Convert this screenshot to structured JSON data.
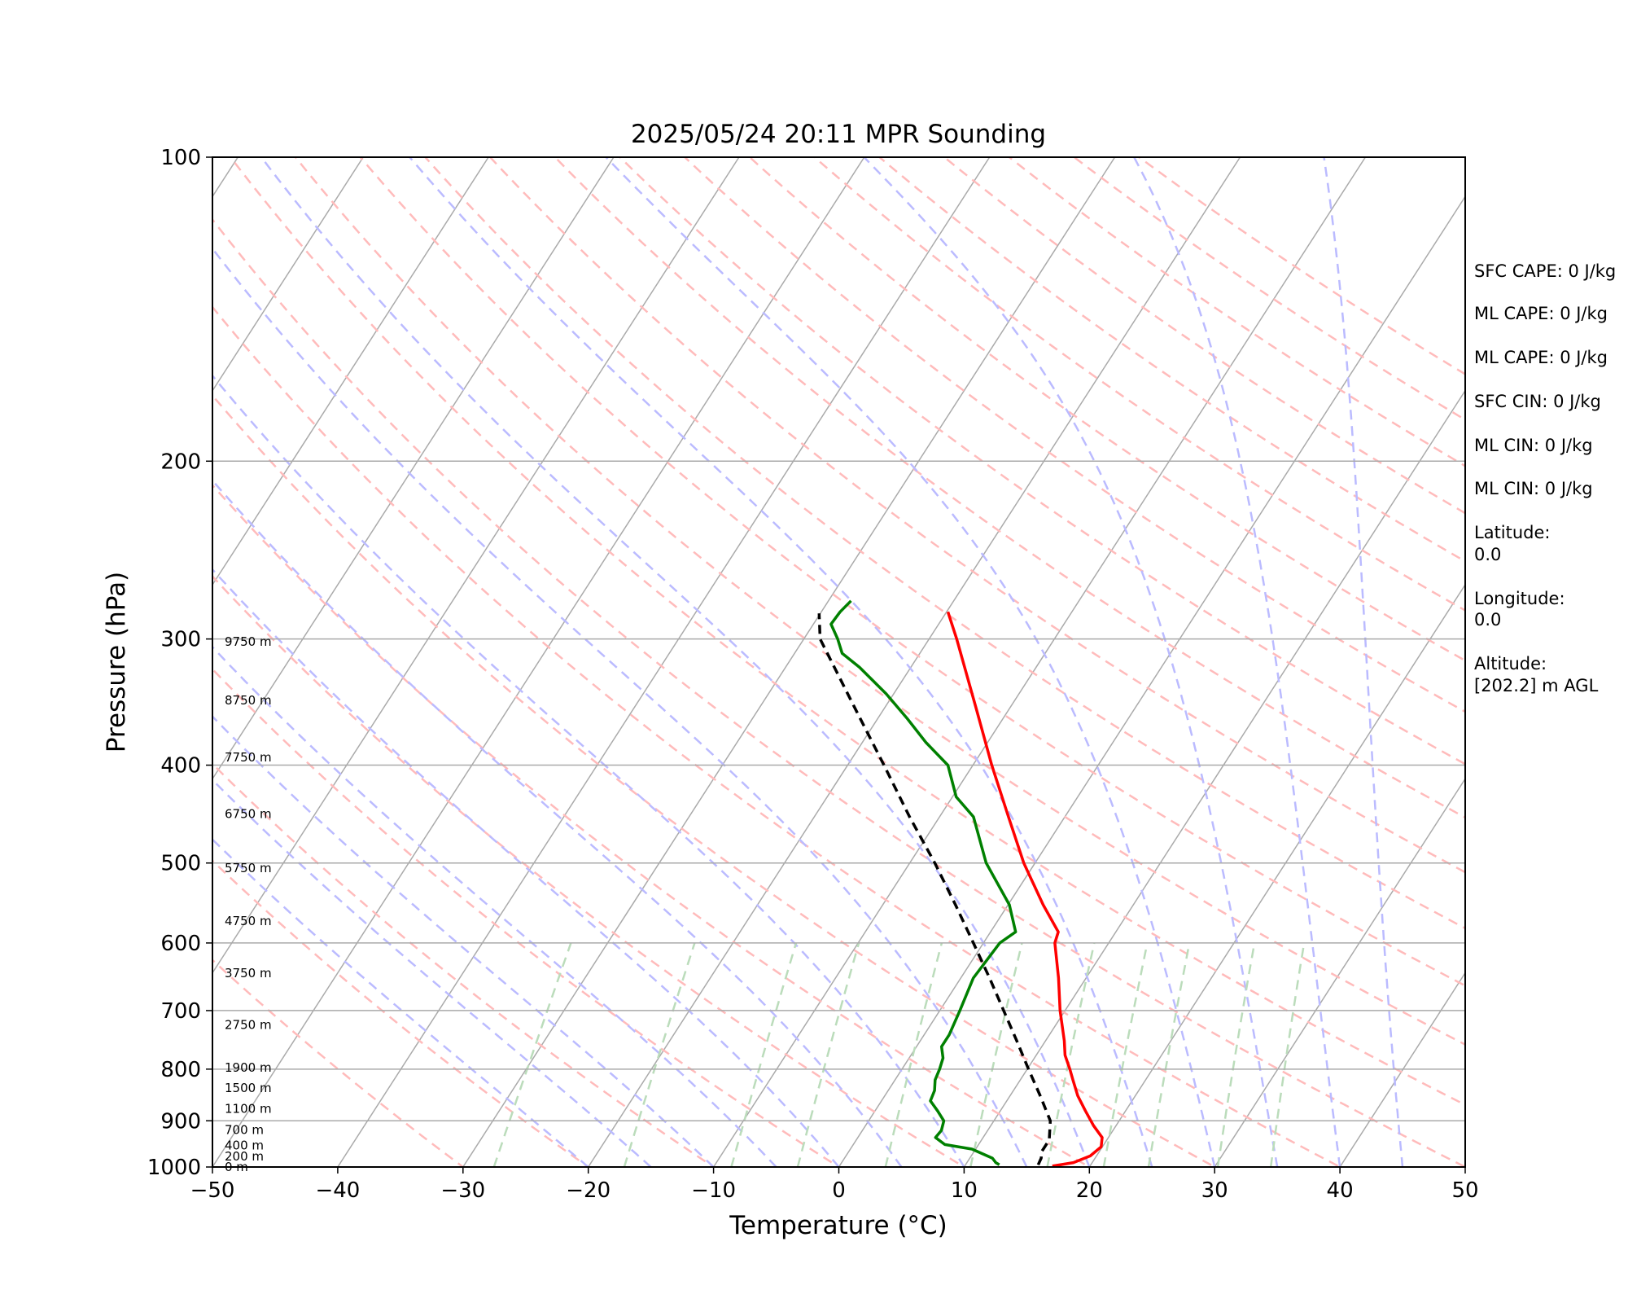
{
  "chart_data": {
    "type": "line",
    "title": "2025/05/24 20:11 MPR Sounding",
    "xlabel": "Temperature (°C)",
    "ylabel": "Pressure (hPa)",
    "xlim": [
      -50,
      50
    ],
    "ylim": [
      1000,
      100
    ],
    "y_scale": "log",
    "skew_t": true,
    "x_ticks": [
      "−50",
      "−40",
      "−30",
      "−20",
      "−10",
      "0",
      "10",
      "20",
      "30",
      "40",
      "50"
    ],
    "y_ticks": [
      "1000",
      "900",
      "800",
      "700",
      "600",
      "500",
      "400",
      "300",
      "200",
      "100"
    ],
    "height_labels": [
      {
        "label": "0 m",
        "p": 1000
      },
      {
        "label": "200 m",
        "p": 976
      },
      {
        "label": "400 m",
        "p": 952
      },
      {
        "label": "700 m",
        "p": 919
      },
      {
        "label": "1100 m",
        "p": 876
      },
      {
        "label": "1500 m",
        "p": 835
      },
      {
        "label": "1900 m",
        "p": 797
      },
      {
        "label": "2750 m",
        "p": 723
      },
      {
        "label": "3750 m",
        "p": 643
      },
      {
        "label": "4750 m",
        "p": 571
      },
      {
        "label": "5750 m",
        "p": 506
      },
      {
        "label": "6750 m",
        "p": 447
      },
      {
        "label": "7750 m",
        "p": 393
      },
      {
        "label": "8750 m",
        "p": 345
      },
      {
        "label": "9750 m",
        "p": 302
      }
    ],
    "series": [
      {
        "role": "temperature",
        "color": "#ff0000",
        "dashed": false,
        "points": [
          [
            998,
            17.0
          ],
          [
            990,
            18.5
          ],
          [
            975,
            19.5
          ],
          [
            955,
            19.9
          ],
          [
            935,
            19.5
          ],
          [
            910,
            18.2
          ],
          [
            880,
            16.8
          ],
          [
            850,
            15.4
          ],
          [
            820,
            14.2
          ],
          [
            800,
            13.4
          ],
          [
            775,
            12.3
          ],
          [
            750,
            11.5
          ],
          [
            700,
            9.6
          ],
          [
            650,
            7.8
          ],
          [
            600,
            5.7
          ],
          [
            585,
            5.4
          ],
          [
            550,
            2.8
          ],
          [
            500,
            -0.9
          ],
          [
            450,
            -4.5
          ],
          [
            400,
            -8.5
          ],
          [
            350,
            -12.8
          ],
          [
            300,
            -17.8
          ],
          [
            282,
            -19.9
          ]
        ]
      },
      {
        "role": "dewpoint",
        "color": "#008000",
        "dashed": false,
        "points": [
          [
            995,
            12.7
          ],
          [
            990,
            12.3
          ],
          [
            980,
            11.8
          ],
          [
            960,
            9.7
          ],
          [
            950,
            7.3
          ],
          [
            935,
            6.2
          ],
          [
            920,
            6.3
          ],
          [
            900,
            6.0
          ],
          [
            880,
            5.0
          ],
          [
            860,
            3.9
          ],
          [
            840,
            3.7
          ],
          [
            820,
            3.2
          ],
          [
            800,
            3.0
          ],
          [
            780,
            2.7
          ],
          [
            760,
            2.0
          ],
          [
            740,
            2.0
          ],
          [
            700,
            1.6
          ],
          [
            650,
            1.0
          ],
          [
            600,
            1.3
          ],
          [
            585,
            2.0
          ],
          [
            550,
            0.1
          ],
          [
            500,
            -3.9
          ],
          [
            450,
            -7.3
          ],
          [
            430,
            -9.7
          ],
          [
            400,
            -12.0
          ],
          [
            380,
            -14.9
          ],
          [
            360,
            -17.6
          ],
          [
            340,
            -20.6
          ],
          [
            320,
            -24.1
          ],
          [
            310,
            -26.2
          ],
          [
            300,
            -27.3
          ],
          [
            290,
            -28.6
          ],
          [
            282,
            -28.5
          ],
          [
            275,
            -28.2
          ]
        ]
      },
      {
        "role": "parcel",
        "color": "#000000",
        "dashed": true,
        "points": [
          [
            995,
            15.8
          ],
          [
            980,
            15.7
          ],
          [
            965,
            15.4
          ],
          [
            940,
            15.4
          ],
          [
            900,
            14.5
          ],
          [
            850,
            12.4
          ],
          [
            800,
            10.1
          ],
          [
            750,
            7.7
          ],
          [
            700,
            5.1
          ],
          [
            650,
            2.3
          ],
          [
            600,
            -0.8
          ],
          [
            550,
            -4.2
          ],
          [
            500,
            -8.0
          ],
          [
            450,
            -12.4
          ],
          [
            400,
            -17.1
          ],
          [
            350,
            -22.5
          ],
          [
            300,
            -28.7
          ],
          [
            283,
            -30.1
          ]
        ]
      }
    ],
    "stats": [
      "SFC CAPE: 0 J/kg",
      "ML CAPE: 0 J/kg",
      "ML CAPE: 0 J/kg",
      "SFC CIN: 0 J/kg",
      "ML CIN: 0 J/kg",
      "ML CIN: 0 J/kg"
    ],
    "location": {
      "latitude_label": "Latitude:",
      "latitude": "0.0",
      "longitude_label": "Longitude:",
      "longitude": "0.0",
      "altitude_label": "Altitude:",
      "altitude": "[202.2] m AGL"
    },
    "reference_lines": {
      "isotherm_color": "#aaaaaa",
      "dry_adiabat_color": "#ffbbbb",
      "moist_adiabat_color": "#bbbbff",
      "mixing_ratio_color": "#bbdcbb"
    }
  }
}
